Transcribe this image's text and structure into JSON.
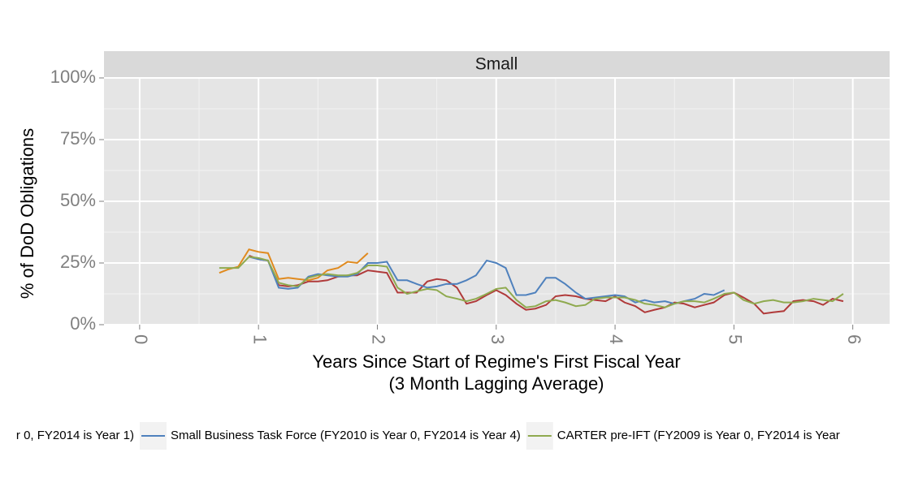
{
  "chart_data": {
    "type": "line",
    "facet_title": "Small",
    "x_label": [
      "Years Since Start of Regime's First Fiscal Year",
      "(3 Month Lagging Average)"
    ],
    "y_label": "% of DoD Obligations",
    "xlim": [
      -0.3,
      6.31
    ],
    "ylim": [
      0,
      100
    ],
    "xticks": [
      0,
      1,
      2,
      3,
      4,
      5,
      6
    ],
    "yticks": [
      {
        "value": 0,
        "label": "0%"
      },
      {
        "value": 25,
        "label": "25%"
      },
      {
        "value": 50,
        "label": "50%"
      },
      {
        "value": 75,
        "label": "75%"
      },
      {
        "value": 100,
        "label": "100%"
      }
    ],
    "grid": true,
    "legend_position": "bottom",
    "series": [
      {
        "color": "#b03a3a",
        "x": [
          0.92,
          1.0,
          1.08,
          1.17,
          1.25,
          1.33,
          1.42,
          1.5,
          1.58,
          1.67,
          1.75,
          1.83,
          1.92,
          2.0,
          2.08,
          2.17,
          2.25,
          2.33,
          2.42,
          2.5,
          2.58,
          2.67,
          2.75,
          2.83,
          2.92,
          3.0,
          3.08,
          3.17,
          3.25,
          3.33,
          3.42,
          3.5,
          3.58,
          3.67,
          3.75,
          3.83,
          3.92,
          4.0,
          4.08,
          4.17,
          4.25,
          4.33,
          4.42,
          4.5,
          4.58,
          4.67,
          4.75,
          4.83,
          4.92,
          5.0,
          5.08,
          5.17,
          5.25,
          5.33,
          5.42,
          5.5,
          5.58,
          5.67,
          5.75,
          5.83,
          5.92
        ],
        "values": [
          28,
          26.5,
          26,
          16,
          15.5,
          16,
          17.5,
          17.5,
          18,
          19.5,
          20,
          20,
          22,
          21.5,
          21,
          13,
          13,
          13,
          17.5,
          18.5,
          18,
          15,
          8.5,
          9.5,
          12,
          14,
          12,
          8.5,
          6,
          6.5,
          8,
          11.5,
          12,
          11.5,
          10.5,
          10,
          9.5,
          11.5,
          9,
          7.5,
          5,
          6,
          7,
          9,
          8.5,
          7,
          8,
          9,
          12,
          13,
          11,
          8.5,
          4.5,
          5,
          5.5,
          9.5,
          10,
          9.5,
          8,
          10.5,
          9.5
        ]
      },
      {
        "name": "r 0, FY2014 is Year 1)",
        "color": "#e08a1e",
        "x": [
          0.67,
          0.75,
          0.83,
          0.92,
          1.0,
          1.08,
          1.17,
          1.25,
          1.33,
          1.42,
          1.5,
          1.58,
          1.67,
          1.75,
          1.83,
          1.92
        ],
        "values": [
          21,
          22.5,
          23.5,
          30.5,
          29.5,
          29,
          18.5,
          19,
          18.5,
          18,
          19,
          22,
          23,
          25.5,
          25,
          29
        ]
      },
      {
        "name": "Small Business Task Force (FY2010 is Year 0, FY2014 is Year 4)",
        "color": "#4f81bd",
        "x": [
          0.92,
          1.0,
          1.08,
          1.17,
          1.25,
          1.33,
          1.42,
          1.5,
          1.58,
          1.67,
          1.75,
          1.83,
          1.92,
          2.0,
          2.08,
          2.17,
          2.25,
          2.33,
          2.42,
          2.5,
          2.58,
          2.67,
          2.75,
          2.83,
          2.92,
          3.0,
          3.08,
          3.17,
          3.25,
          3.33,
          3.42,
          3.5,
          3.58,
          3.67,
          3.75,
          3.83,
          3.92,
          4.0,
          4.08,
          4.17,
          4.25,
          4.33,
          4.42,
          4.5,
          4.58,
          4.67,
          4.75,
          4.83,
          4.92
        ],
        "values": [
          27.5,
          26.5,
          26,
          15,
          14.5,
          15,
          19.5,
          20.5,
          20,
          19.5,
          19.5,
          20.5,
          25,
          25,
          25.5,
          18,
          18,
          16.5,
          15,
          15.5,
          16.5,
          16.5,
          18,
          20,
          26,
          25,
          23,
          12,
          12,
          13,
          19,
          19,
          16.5,
          13,
          10.5,
          11,
          11.5,
          12,
          11.5,
          9,
          10,
          9,
          9.5,
          8.5,
          9.5,
          10.5,
          12.5,
          12,
          14
        ]
      },
      {
        "name": "CARTER pre-IFT (FY2009 is Year 0, FY2014 is Year",
        "color": "#8faa4f",
        "x": [
          0.67,
          0.75,
          0.83,
          0.92,
          1.0,
          1.08,
          1.17,
          1.25,
          1.33,
          1.42,
          1.5,
          1.58,
          1.67,
          1.75,
          1.83,
          1.92,
          2.0,
          2.08,
          2.17,
          2.25,
          2.33,
          2.42,
          2.5,
          2.58,
          2.67,
          2.75,
          2.83,
          2.92,
          3.0,
          3.08,
          3.17,
          3.25,
          3.33,
          3.42,
          3.5,
          3.58,
          3.67,
          3.75,
          3.83,
          3.92,
          4.0,
          4.08,
          4.17,
          4.25,
          4.33,
          4.42,
          4.5,
          4.58,
          4.67,
          4.75,
          4.83,
          4.92,
          5.0,
          5.08,
          5.17,
          5.25,
          5.33,
          5.42,
          5.5,
          5.58,
          5.67,
          5.75,
          5.83,
          5.92
        ],
        "values": [
          23,
          23,
          23,
          27.5,
          27,
          26,
          17,
          16,
          15.5,
          19,
          20,
          20.5,
          20,
          20,
          21,
          24,
          24,
          23.5,
          15,
          12.5,
          13.5,
          14.5,
          14,
          11.5,
          10.5,
          9.5,
          10.5,
          12.5,
          14.5,
          15,
          10,
          7,
          7.5,
          9.5,
          10,
          9,
          7.5,
          8,
          10.5,
          11,
          11,
          11,
          10,
          8.5,
          8,
          7,
          8.5,
          9.5,
          9.5,
          9,
          10.5,
          12.5,
          13,
          10,
          8.5,
          9.5,
          10,
          9,
          9,
          9.5,
          10.5,
          10,
          9.5,
          12.5
        ]
      }
    ]
  }
}
